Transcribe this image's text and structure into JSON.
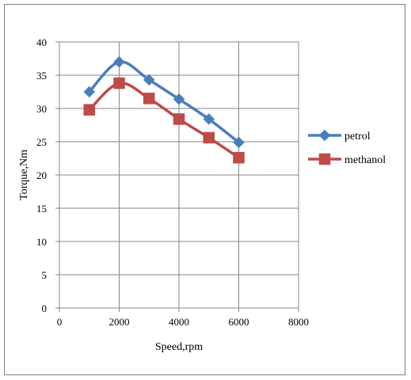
{
  "chart_data": {
    "type": "line",
    "title": "",
    "xlabel": "Speed,rpm",
    "ylabel": "Torque,Nm",
    "xlim": [
      0,
      8000
    ],
    "ylim": [
      0,
      40
    ],
    "x_ticks": [
      "0",
      "2000",
      "4000",
      "6000",
      "8000"
    ],
    "y_ticks": [
      "0",
      "5",
      "10",
      "15",
      "20",
      "25",
      "30",
      "35",
      "40"
    ],
    "grid": "vertical and horizontal major gridlines",
    "legend_position": "right",
    "x": [
      1000,
      2000,
      3000,
      4000,
      5000,
      6000
    ],
    "series": [
      {
        "name": "petrol",
        "color": "#4a7ebb",
        "marker": "diamond",
        "values": [
          32.5,
          37.0,
          34.3,
          31.4,
          28.4,
          24.9
        ]
      },
      {
        "name": "methanol",
        "color": "#be4b48",
        "marker": "square",
        "values": [
          29.8,
          33.8,
          31.5,
          28.4,
          25.6,
          22.6
        ]
      }
    ]
  }
}
